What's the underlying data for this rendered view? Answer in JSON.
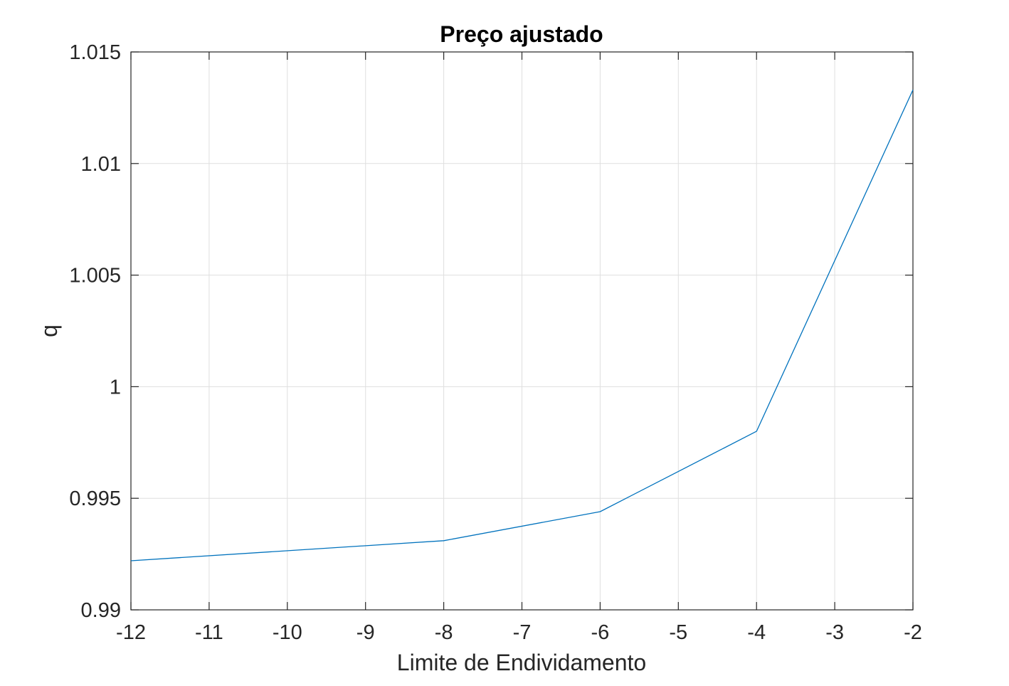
{
  "chart_data": {
    "type": "line",
    "title": "Preço ajustado",
    "xlabel": "Limite de Endividamento",
    "ylabel": "q",
    "xlim": [
      -12,
      -2
    ],
    "ylim": [
      0.99,
      1.015
    ],
    "xticks": [
      -12,
      -11,
      -10,
      -9,
      -8,
      -7,
      -6,
      -5,
      -4,
      -3,
      -2
    ],
    "xtick_labels": [
      "-12",
      "-11",
      "-10",
      "-9",
      "-8",
      "-7",
      "-6",
      "-5",
      "-4",
      "-3",
      "-2"
    ],
    "yticks": [
      0.99,
      0.995,
      1.0,
      1.005,
      1.01,
      1.015
    ],
    "ytick_labels": [
      "0.99",
      "0.995",
      "1",
      "1.005",
      "1.01",
      "1.015"
    ],
    "grid": true,
    "series": [
      {
        "color": "#0072bd",
        "x": [
          -12,
          -8,
          -6,
          -4,
          -2
        ],
        "y": [
          0.9922,
          0.9931,
          0.9944,
          0.998,
          1.0133
        ]
      }
    ]
  }
}
